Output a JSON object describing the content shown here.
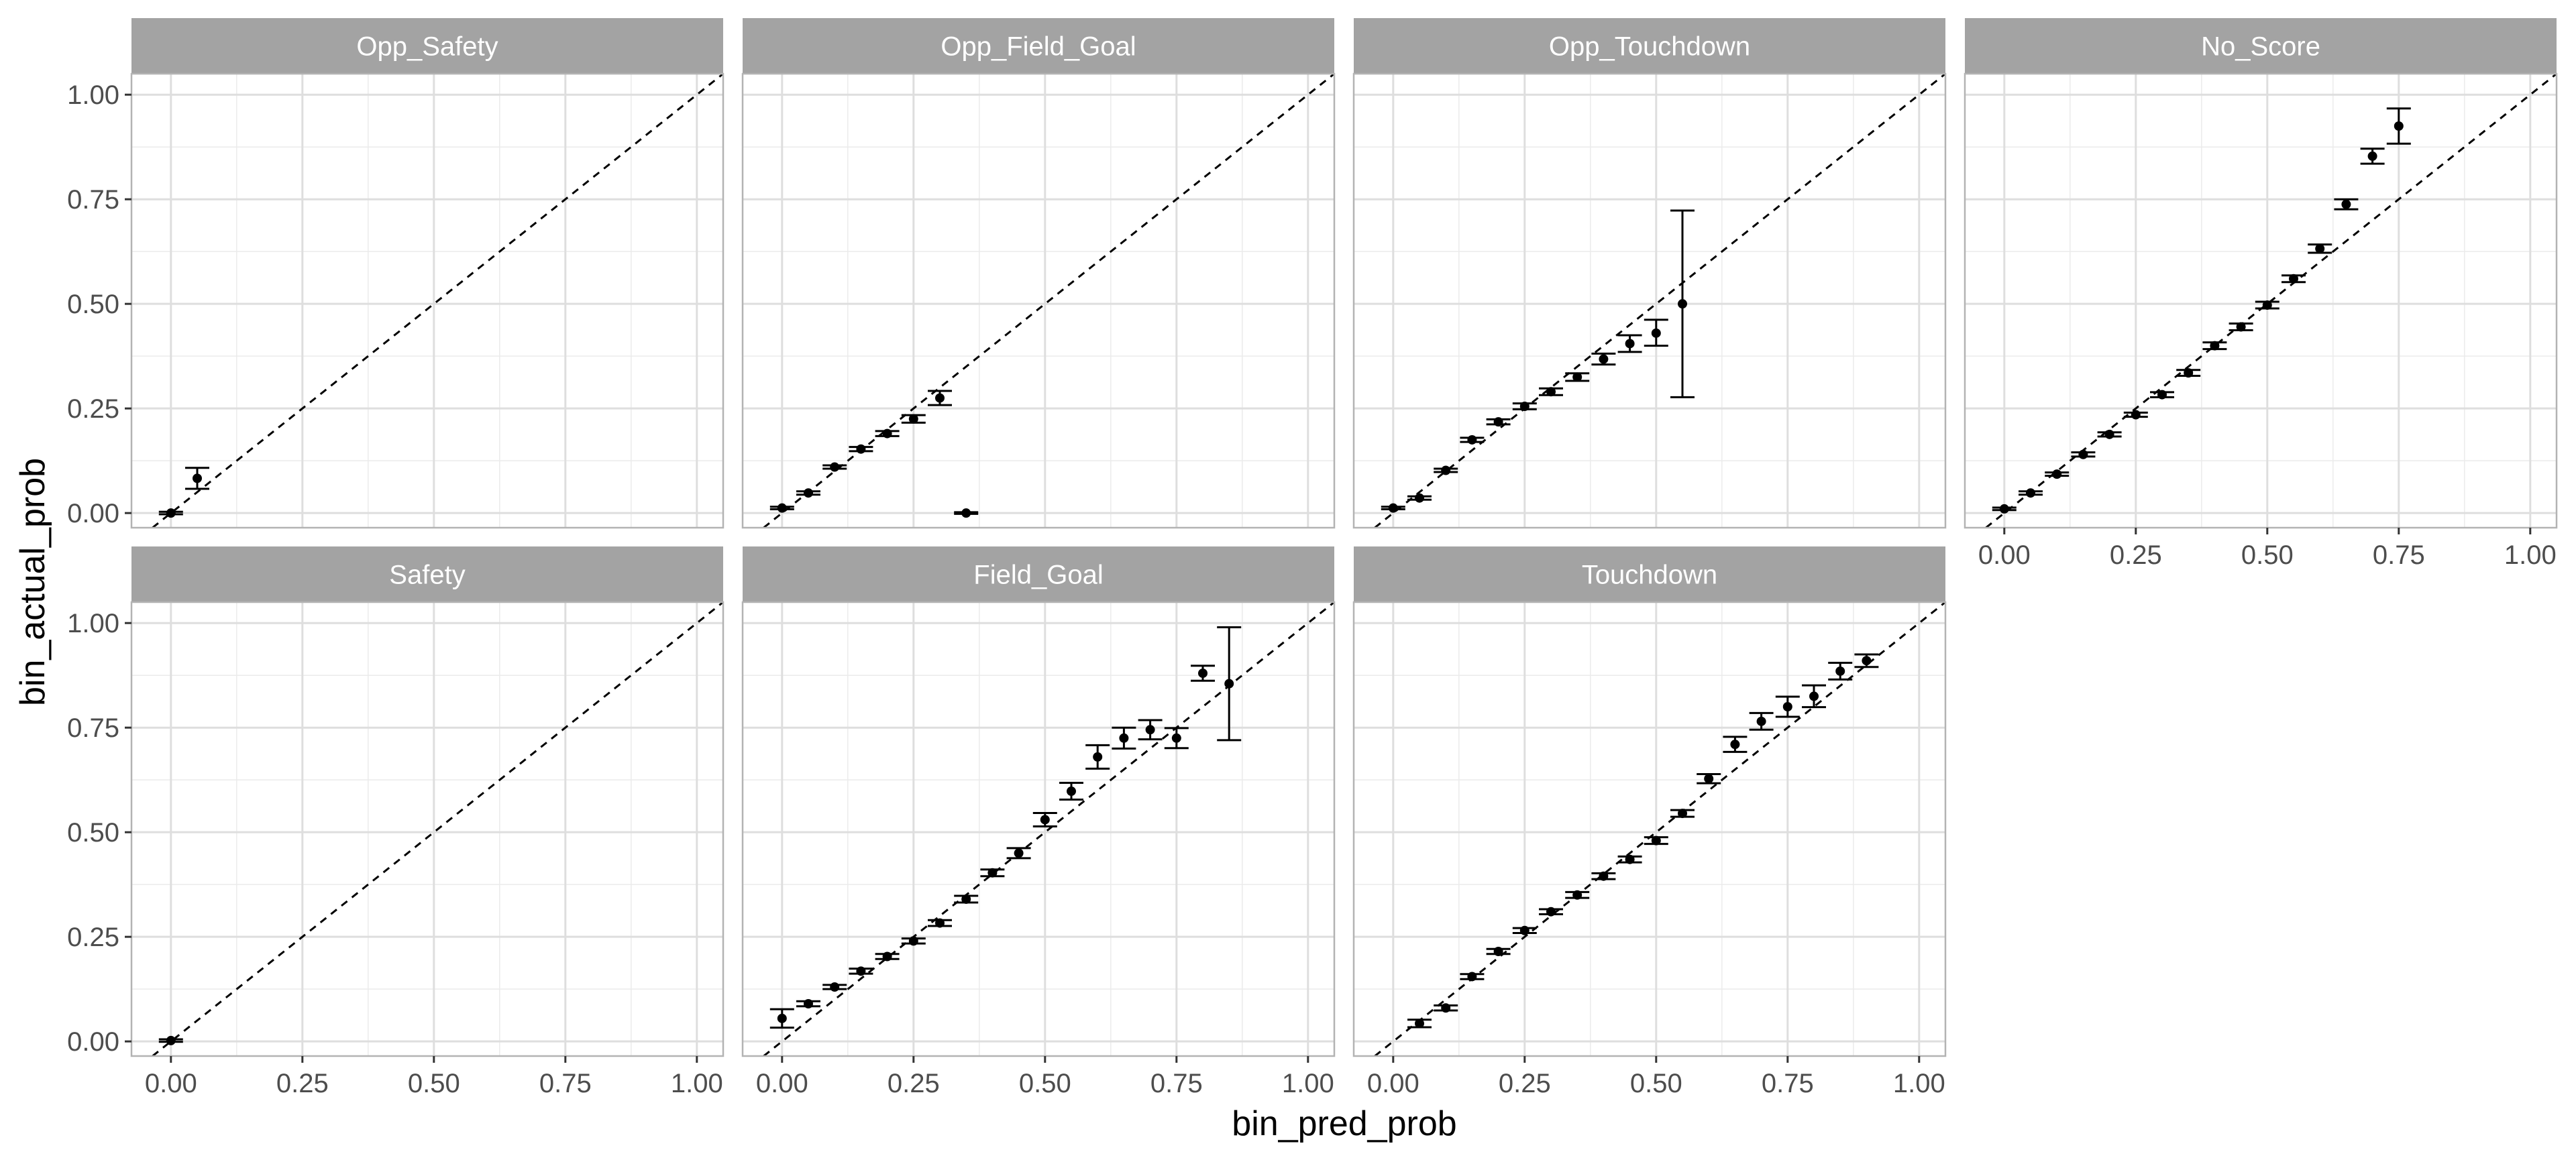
{
  "chart_data": {
    "type": "scatter",
    "description_style": "faceted calibration plot with error bars and dashed y=x reference line",
    "xlabel": "bin_pred_prob",
    "ylabel": "bin_actual_prob",
    "xlim": [
      -0.075,
      1.05
    ],
    "ylim": [
      -0.035,
      1.05
    ],
    "x_ticks": [
      "0.00",
      "0.25",
      "0.50",
      "0.75",
      "1.00"
    ],
    "y_ticks": [
      "0.00",
      "0.25",
      "0.50",
      "0.75",
      "1.00"
    ],
    "grid": true,
    "reference_line": "y = x",
    "facets": [
      {
        "title": "Opp_Safety",
        "points": [
          {
            "x": 0.0,
            "y": 0.0,
            "lo": -0.003,
            "hi": 0.003
          },
          {
            "x": 0.05,
            "y": 0.083,
            "lo": 0.058,
            "hi": 0.108
          }
        ]
      },
      {
        "title": "Opp_Field_Goal",
        "points": [
          {
            "x": 0.0,
            "y": 0.012,
            "lo": 0.009,
            "hi": 0.015
          },
          {
            "x": 0.05,
            "y": 0.048,
            "lo": 0.044,
            "hi": 0.052
          },
          {
            "x": 0.1,
            "y": 0.11,
            "lo": 0.106,
            "hi": 0.114
          },
          {
            "x": 0.15,
            "y": 0.153,
            "lo": 0.148,
            "hi": 0.158
          },
          {
            "x": 0.2,
            "y": 0.19,
            "lo": 0.184,
            "hi": 0.196
          },
          {
            "x": 0.25,
            "y": 0.225,
            "lo": 0.216,
            "hi": 0.234
          },
          {
            "x": 0.3,
            "y": 0.275,
            "lo": 0.258,
            "hi": 0.292
          },
          {
            "x": 0.35,
            "y": 0.0,
            "lo": -0.002,
            "hi": 0.002
          }
        ]
      },
      {
        "title": "Opp_Touchdown",
        "points": [
          {
            "x": 0.0,
            "y": 0.012,
            "lo": 0.009,
            "hi": 0.015
          },
          {
            "x": 0.05,
            "y": 0.036,
            "lo": 0.032,
            "hi": 0.04
          },
          {
            "x": 0.1,
            "y": 0.102,
            "lo": 0.098,
            "hi": 0.106
          },
          {
            "x": 0.15,
            "y": 0.175,
            "lo": 0.17,
            "hi": 0.18
          },
          {
            "x": 0.2,
            "y": 0.218,
            "lo": 0.212,
            "hi": 0.224
          },
          {
            "x": 0.25,
            "y": 0.255,
            "lo": 0.248,
            "hi": 0.262
          },
          {
            "x": 0.3,
            "y": 0.29,
            "lo": 0.282,
            "hi": 0.298
          },
          {
            "x": 0.35,
            "y": 0.325,
            "lo": 0.316,
            "hi": 0.334
          },
          {
            "x": 0.4,
            "y": 0.368,
            "lo": 0.355,
            "hi": 0.381
          },
          {
            "x": 0.45,
            "y": 0.405,
            "lo": 0.385,
            "hi": 0.425
          },
          {
            "x": 0.5,
            "y": 0.43,
            "lo": 0.4,
            "hi": 0.462
          },
          {
            "x": 0.55,
            "y": 0.5,
            "lo": 0.277,
            "hi": 0.723
          }
        ]
      },
      {
        "title": "No_Score",
        "points": [
          {
            "x": 0.0,
            "y": 0.01,
            "lo": 0.007,
            "hi": 0.013
          },
          {
            "x": 0.05,
            "y": 0.048,
            "lo": 0.044,
            "hi": 0.052
          },
          {
            "x": 0.1,
            "y": 0.093,
            "lo": 0.089,
            "hi": 0.097
          },
          {
            "x": 0.15,
            "y": 0.14,
            "lo": 0.135,
            "hi": 0.145
          },
          {
            "x": 0.2,
            "y": 0.188,
            "lo": 0.183,
            "hi": 0.193
          },
          {
            "x": 0.25,
            "y": 0.235,
            "lo": 0.23,
            "hi": 0.24
          },
          {
            "x": 0.3,
            "y": 0.283,
            "lo": 0.277,
            "hi": 0.289
          },
          {
            "x": 0.35,
            "y": 0.335,
            "lo": 0.328,
            "hi": 0.342
          },
          {
            "x": 0.4,
            "y": 0.4,
            "lo": 0.392,
            "hi": 0.408
          },
          {
            "x": 0.45,
            "y": 0.445,
            "lo": 0.437,
            "hi": 0.453
          },
          {
            "x": 0.5,
            "y": 0.497,
            "lo": 0.489,
            "hi": 0.505
          },
          {
            "x": 0.55,
            "y": 0.56,
            "lo": 0.552,
            "hi": 0.568
          },
          {
            "x": 0.6,
            "y": 0.632,
            "lo": 0.622,
            "hi": 0.642
          },
          {
            "x": 0.65,
            "y": 0.738,
            "lo": 0.726,
            "hi": 0.75
          },
          {
            "x": 0.7,
            "y": 0.853,
            "lo": 0.835,
            "hi": 0.871
          },
          {
            "x": 0.75,
            "y": 0.925,
            "lo": 0.883,
            "hi": 0.967
          }
        ]
      },
      {
        "title": "Safety",
        "points": [
          {
            "x": 0.0,
            "y": 0.002,
            "lo": -0.001,
            "hi": 0.005
          }
        ]
      },
      {
        "title": "Field_Goal",
        "points": [
          {
            "x": 0.0,
            "y": 0.055,
            "lo": 0.033,
            "hi": 0.077
          },
          {
            "x": 0.05,
            "y": 0.09,
            "lo": 0.084,
            "hi": 0.096
          },
          {
            "x": 0.1,
            "y": 0.13,
            "lo": 0.125,
            "hi": 0.135
          },
          {
            "x": 0.15,
            "y": 0.168,
            "lo": 0.162,
            "hi": 0.174
          },
          {
            "x": 0.2,
            "y": 0.203,
            "lo": 0.197,
            "hi": 0.209
          },
          {
            "x": 0.25,
            "y": 0.24,
            "lo": 0.234,
            "hi": 0.246
          },
          {
            "x": 0.3,
            "y": 0.283,
            "lo": 0.276,
            "hi": 0.29
          },
          {
            "x": 0.35,
            "y": 0.34,
            "lo": 0.332,
            "hi": 0.348
          },
          {
            "x": 0.4,
            "y": 0.403,
            "lo": 0.395,
            "hi": 0.411
          },
          {
            "x": 0.45,
            "y": 0.45,
            "lo": 0.438,
            "hi": 0.462
          },
          {
            "x": 0.5,
            "y": 0.53,
            "lo": 0.514,
            "hi": 0.546
          },
          {
            "x": 0.55,
            "y": 0.598,
            "lo": 0.578,
            "hi": 0.618
          },
          {
            "x": 0.6,
            "y": 0.68,
            "lo": 0.652,
            "hi": 0.708
          },
          {
            "x": 0.65,
            "y": 0.725,
            "lo": 0.7,
            "hi": 0.75
          },
          {
            "x": 0.7,
            "y": 0.745,
            "lo": 0.722,
            "hi": 0.768
          },
          {
            "x": 0.75,
            "y": 0.725,
            "lo": 0.701,
            "hi": 0.749
          },
          {
            "x": 0.8,
            "y": 0.88,
            "lo": 0.862,
            "hi": 0.898
          },
          {
            "x": 0.85,
            "y": 0.855,
            "lo": 0.72,
            "hi": 0.99
          }
        ]
      },
      {
        "title": "Touchdown",
        "points": [
          {
            "x": 0.05,
            "y": 0.043,
            "lo": 0.034,
            "hi": 0.052
          },
          {
            "x": 0.1,
            "y": 0.08,
            "lo": 0.074,
            "hi": 0.086
          },
          {
            "x": 0.15,
            "y": 0.155,
            "lo": 0.149,
            "hi": 0.161
          },
          {
            "x": 0.2,
            "y": 0.215,
            "lo": 0.209,
            "hi": 0.221
          },
          {
            "x": 0.25,
            "y": 0.265,
            "lo": 0.259,
            "hi": 0.271
          },
          {
            "x": 0.3,
            "y": 0.31,
            "lo": 0.304,
            "hi": 0.316
          },
          {
            "x": 0.35,
            "y": 0.35,
            "lo": 0.343,
            "hi": 0.357
          },
          {
            "x": 0.4,
            "y": 0.395,
            "lo": 0.388,
            "hi": 0.402
          },
          {
            "x": 0.45,
            "y": 0.435,
            "lo": 0.428,
            "hi": 0.442
          },
          {
            "x": 0.5,
            "y": 0.48,
            "lo": 0.472,
            "hi": 0.488
          },
          {
            "x": 0.55,
            "y": 0.545,
            "lo": 0.537,
            "hi": 0.553
          },
          {
            "x": 0.6,
            "y": 0.628,
            "lo": 0.617,
            "hi": 0.639
          },
          {
            "x": 0.65,
            "y": 0.71,
            "lo": 0.692,
            "hi": 0.728
          },
          {
            "x": 0.7,
            "y": 0.765,
            "lo": 0.745,
            "hi": 0.785
          },
          {
            "x": 0.75,
            "y": 0.8,
            "lo": 0.776,
            "hi": 0.824
          },
          {
            "x": 0.8,
            "y": 0.825,
            "lo": 0.799,
            "hi": 0.851
          },
          {
            "x": 0.85,
            "y": 0.885,
            "lo": 0.865,
            "hi": 0.905
          },
          {
            "x": 0.9,
            "y": 0.91,
            "lo": 0.895,
            "hi": 0.925
          }
        ]
      }
    ]
  }
}
